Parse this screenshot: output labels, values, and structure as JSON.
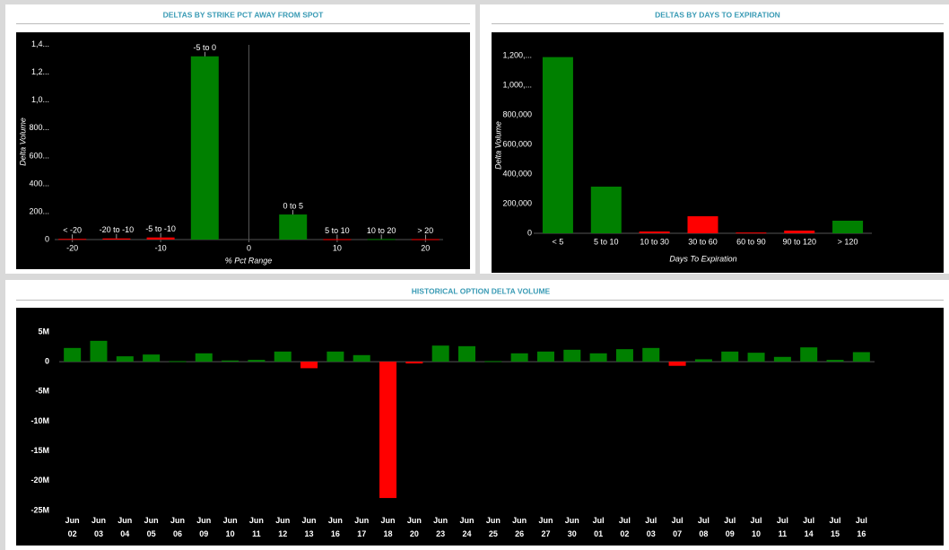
{
  "chart_data": [
    {
      "type": "bar",
      "title": "DELTAS BY STRIKE PCT AWAY FROM SPOT",
      "x_label": "% Pct Range",
      "y_label": "Delta Volume",
      "categories": [
        "< -20",
        "-20 to -10",
        "-5 to -10",
        "-5 to 0",
        "0 to 5",
        "5 to 10",
        "10 to 20",
        "> 20"
      ],
      "x": [
        -20,
        -15,
        -10,
        -5,
        5,
        10,
        15,
        20
      ],
      "values": [
        5000,
        8000,
        15000,
        1316000,
        180000,
        3000,
        4000,
        3000
      ],
      "colors": [
        "#ff0000",
        "#ff0000",
        "#ff0000",
        "#008000",
        "#008000",
        "#ff0000",
        "#008000",
        "#ff0000"
      ],
      "xlim": [
        -22,
        22
      ],
      "xticks": [
        -20,
        -10,
        0,
        10,
        20
      ],
      "ylim": [
        0,
        1450000
      ],
      "yticks": [
        0,
        {
          "value": 200000,
          "label": "200..."
        },
        {
          "value": 400000,
          "label": "400..."
        },
        {
          "value": 600000,
          "label": "600..."
        },
        {
          "value": 800000,
          "label": "800..."
        },
        {
          "value": 1000000,
          "label": "1,0..."
        },
        {
          "value": 1200000,
          "label": "1,2..."
        },
        {
          "value": 1400000,
          "label": "1,4..."
        }
      ]
    },
    {
      "type": "bar",
      "title": "DELTAS BY DAYS TO EXPIRATION",
      "x_label": "Days To Expiration",
      "y_label": "Delta Volume",
      "categories": [
        "< 5",
        "5 to 10",
        "10 to 30",
        "30 to 60",
        "60 to 90",
        "90 to 120",
        "> 120"
      ],
      "values": [
        1190000,
        315000,
        12000,
        115000,
        5000,
        18000,
        85000
      ],
      "colors": [
        "#008000",
        "#008000",
        "#ff0000",
        "#ff0000",
        "#ff0000",
        "#ff0000",
        "#008000"
      ],
      "ylim": [
        0,
        1250000
      ],
      "yticks": [
        0,
        {
          "value": 200000,
          "label": "200,000"
        },
        {
          "value": 400000,
          "label": "400,000"
        },
        {
          "value": 600000,
          "label": "600,000"
        },
        {
          "value": 800000,
          "label": "800,000"
        },
        {
          "value": 1000000,
          "label": "1,000,..."
        },
        {
          "value": 1200000,
          "label": "1,200,..."
        }
      ]
    },
    {
      "type": "bar",
      "title": "HISTORICAL OPTION DELTA VOLUME",
      "categories": [
        [
          "Jun",
          "02"
        ],
        [
          "Jun",
          "03"
        ],
        [
          "Jun",
          "04"
        ],
        [
          "Jun",
          "05"
        ],
        [
          "Jun",
          "06"
        ],
        [
          "Jun",
          "09"
        ],
        [
          "Jun",
          "10"
        ],
        [
          "Jun",
          "11"
        ],
        [
          "Jun",
          "12"
        ],
        [
          "Jun",
          "13"
        ],
        [
          "Jun",
          "16"
        ],
        [
          "Jun",
          "17"
        ],
        [
          "Jun",
          "18"
        ],
        [
          "Jun",
          "20"
        ],
        [
          "Jun",
          "23"
        ],
        [
          "Jun",
          "24"
        ],
        [
          "Jun",
          "25"
        ],
        [
          "Jun",
          "26"
        ],
        [
          "Jun",
          "27"
        ],
        [
          "Jun",
          "30"
        ],
        [
          "Jul",
          "01"
        ],
        [
          "Jul",
          "02"
        ],
        [
          "Jul",
          "03"
        ],
        [
          "Jul",
          "07"
        ],
        [
          "Jul",
          "08"
        ],
        [
          "Jul",
          "09"
        ],
        [
          "Jul",
          "10"
        ],
        [
          "Jul",
          "11"
        ],
        [
          "Jul",
          "14"
        ],
        [
          "Jul",
          "15"
        ],
        [
          "Jul",
          "16"
        ]
      ],
      "values": [
        2300000,
        3500000,
        900000,
        1200000,
        100000,
        1400000,
        200000,
        300000,
        1700000,
        -1100000,
        1700000,
        1100000,
        -22900000,
        -300000,
        2700000,
        2600000,
        100000,
        1400000,
        1700000,
        2000000,
        1400000,
        2100000,
        2300000,
        -700000,
        400000,
        1700000,
        1500000,
        800000,
        2400000,
        300000,
        1600000
      ],
      "colors": {
        "positive": "#008000",
        "negative": "#ff0000"
      },
      "ylim": [
        -25000000,
        8000000
      ],
      "yticks": [
        {
          "value": -25000000,
          "label": "-25M"
        },
        {
          "value": -20000000,
          "label": "-20M"
        },
        {
          "value": -15000000,
          "label": "-15M"
        },
        {
          "value": -10000000,
          "label": "-10M"
        },
        {
          "value": -5000000,
          "label": "-5M"
        },
        0,
        {
          "value": 5000000,
          "label": "5M"
        }
      ]
    }
  ]
}
